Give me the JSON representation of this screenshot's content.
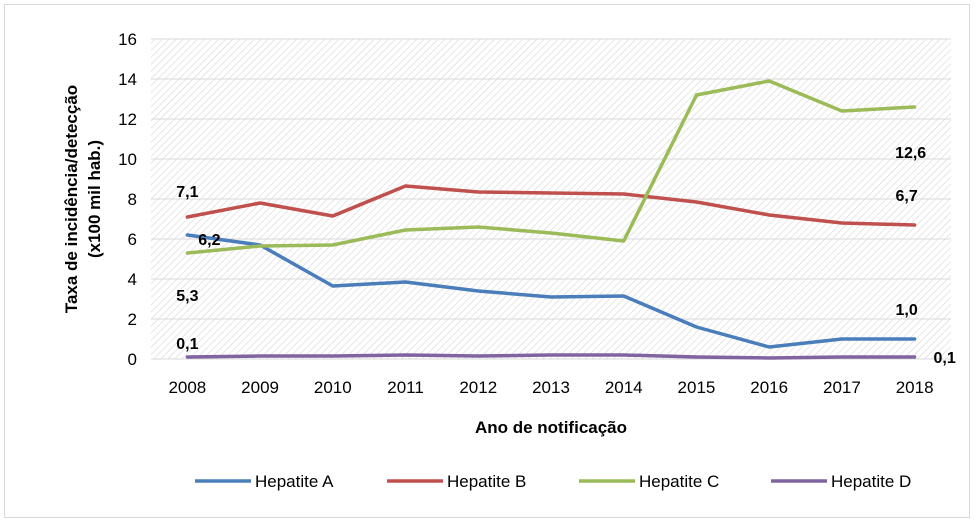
{
  "chart_data": {
    "type": "line",
    "xlabel": "Ano de notificação",
    "ylabel_line1": "Taxa de incidência/detecção",
    "ylabel_line2": "(x100 mil hab.)",
    "ylim": [
      0,
      16
    ],
    "yticks": [
      0,
      2,
      4,
      6,
      8,
      10,
      12,
      14,
      16
    ],
    "categories": [
      "2008",
      "2009",
      "2010",
      "2011",
      "2012",
      "2013",
      "2014",
      "2015",
      "2016",
      "2017",
      "2018"
    ],
    "grid": true,
    "legend_position": "bottom",
    "series": [
      {
        "name": "Hepatite A",
        "color": "#4a7ebb",
        "values": [
          6.2,
          5.7,
          3.65,
          3.85,
          3.4,
          3.1,
          3.15,
          1.6,
          0.6,
          1.0,
          1.0
        ]
      },
      {
        "name": "Hepatite B",
        "color": "#c0504d",
        "values": [
          7.1,
          7.8,
          7.15,
          8.65,
          8.35,
          8.3,
          8.25,
          7.85,
          7.2,
          6.8,
          6.7
        ]
      },
      {
        "name": "Hepatite C",
        "color": "#9bbb59",
        "values": [
          5.3,
          5.65,
          5.7,
          6.45,
          6.6,
          6.3,
          5.9,
          13.2,
          13.9,
          12.4,
          12.6
        ]
      },
      {
        "name": "Hepatite D",
        "color": "#8064a2",
        "values": [
          0.1,
          0.15,
          0.15,
          0.2,
          0.15,
          0.2,
          0.2,
          0.1,
          0.05,
          0.1,
          0.1
        ]
      }
    ],
    "annotations": [
      {
        "text": "7,1",
        "series": "Hepatite B",
        "index": 0
      },
      {
        "text": "6,2",
        "series": "Hepatite A",
        "index": 0
      },
      {
        "text": "5,3",
        "series": "Hepatite C",
        "index": 0
      },
      {
        "text": "0,1",
        "series": "Hepatite D",
        "index": 0
      },
      {
        "text": "12,6",
        "series": "Hepatite C",
        "index": 10
      },
      {
        "text": "6,7",
        "series": "Hepatite B",
        "index": 10
      },
      {
        "text": "1,0",
        "series": "Hepatite A",
        "index": 10
      },
      {
        "text": "0,1",
        "series": "Hepatite D",
        "index": 10
      }
    ]
  }
}
